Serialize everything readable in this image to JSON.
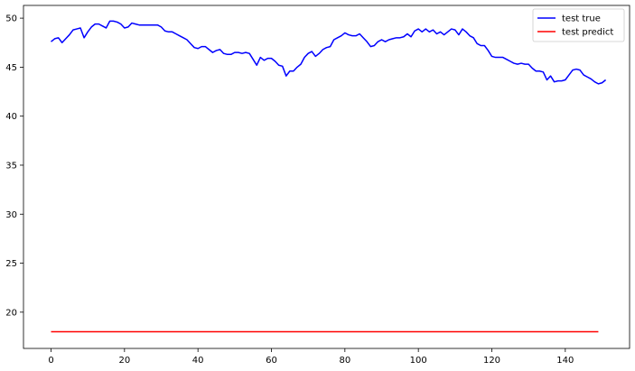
{
  "chart_data": {
    "type": "line",
    "title": "",
    "xlabel": "",
    "ylabel": "",
    "xlim": [
      -7.5,
      157.5
    ],
    "ylim": [
      16.3,
      51.3
    ],
    "grid": false,
    "legend_position": "top-right",
    "x_ticks": [
      0,
      20,
      40,
      60,
      80,
      100,
      120,
      140
    ],
    "y_ticks": [
      20,
      25,
      30,
      35,
      40,
      45,
      50
    ],
    "series": [
      {
        "name": "test true",
        "color": "#0000ff",
        "values": [
          47.6,
          47.9,
          48.0,
          47.5,
          47.9,
          48.3,
          48.8,
          48.9,
          49.0,
          48.0,
          48.6,
          49.1,
          49.4,
          49.4,
          49.2,
          49.0,
          49.7,
          49.7,
          49.6,
          49.4,
          49.0,
          49.1,
          49.5,
          49.4,
          49.3,
          49.3,
          49.3,
          49.3,
          49.3,
          49.3,
          49.1,
          48.7,
          48.6,
          48.6,
          48.4,
          48.2,
          48.0,
          47.8,
          47.4,
          47.0,
          46.9,
          47.1,
          47.1,
          46.8,
          46.5,
          46.7,
          46.8,
          46.4,
          46.3,
          46.3,
          46.5,
          46.5,
          46.4,
          46.5,
          46.4,
          45.8,
          45.2,
          46.0,
          45.7,
          45.9,
          45.9,
          45.6,
          45.2,
          45.1,
          44.1,
          44.6,
          44.6,
          45.0,
          45.3,
          46.0,
          46.4,
          46.6,
          46.1,
          46.4,
          46.8,
          47.0,
          47.1,
          47.8,
          48.0,
          48.2,
          48.5,
          48.3,
          48.2,
          48.2,
          48.4,
          48.0,
          47.6,
          47.1,
          47.2,
          47.6,
          47.8,
          47.6,
          47.8,
          47.9,
          48.0,
          48.0,
          48.1,
          48.4,
          48.1,
          48.7,
          48.9,
          48.6,
          48.9,
          48.6,
          48.8,
          48.4,
          48.6,
          48.3,
          48.6,
          48.9,
          48.8,
          48.3,
          48.9,
          48.6,
          48.2,
          48.0,
          47.4,
          47.2,
          47.2,
          46.7,
          46.1,
          46.0,
          46.0,
          46.0,
          45.8,
          45.6,
          45.4,
          45.3,
          45.4,
          45.3,
          45.3,
          44.9,
          44.6,
          44.6,
          44.5,
          43.7,
          44.1,
          43.5,
          43.6,
          43.6,
          43.7,
          44.2,
          44.7,
          44.8,
          44.7,
          44.2,
          44.0,
          43.8,
          43.5,
          43.3,
          43.4,
          43.7
        ]
      },
      {
        "name": "test predict",
        "color": "#ff0000",
        "values": "constant",
        "constant_value": 18.0,
        "length": 150
      }
    ]
  }
}
